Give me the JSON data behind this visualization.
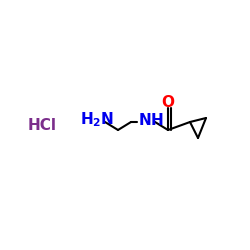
{
  "background_color": "#ffffff",
  "hcl_text": "HCl",
  "hcl_color": "#7B2D8B",
  "hcl_fontsize": 11,
  "nh2_color": "#0000EE",
  "nh2_fontsize": 11,
  "nh_color": "#0000EE",
  "nh_fontsize": 11,
  "o_color": "#FF0000",
  "o_fontsize": 11,
  "bond_color": "#000000",
  "bond_width": 1.5
}
